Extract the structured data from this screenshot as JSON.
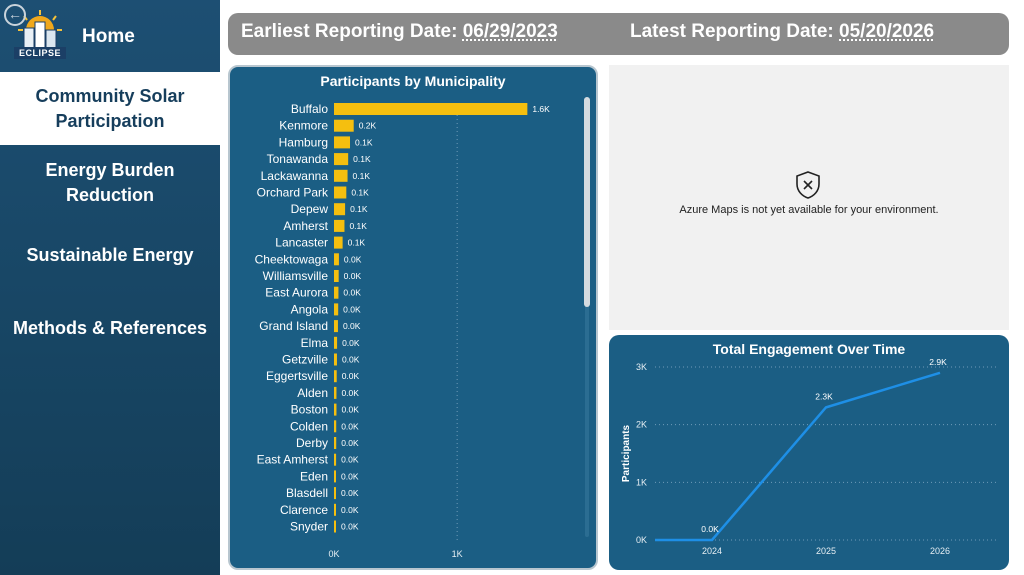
{
  "sidebar": {
    "home_label": "Home",
    "logo_text": "ECLIPSE",
    "items": [
      {
        "line1": "Community Solar",
        "line2": "Participation",
        "active": true
      },
      {
        "line1": "Energy Burden",
        "line2": "Reduction",
        "active": false
      },
      {
        "line1": "Sustainable Energy",
        "line2": "",
        "active": false
      },
      {
        "line1": "Methods & References",
        "line2": "",
        "active": false
      }
    ]
  },
  "header": {
    "earliest_label": "Earliest Reporting Date:",
    "earliest_value": "06/29/2023",
    "latest_label": "Latest Reporting Date:",
    "latest_value": "05/20/2026"
  },
  "map": {
    "message": "Azure Maps is not yet available for your environment."
  },
  "colors": {
    "bar": "#f5bf0f",
    "line": "#1e8fe6",
    "card": "#1b5e84"
  },
  "chart_data": [
    {
      "type": "bar",
      "orientation": "horizontal",
      "title": "Participants by Municipality",
      "categories": [
        "Buffalo",
        "Kenmore",
        "Hamburg",
        "Tonawanda",
        "Lackawanna",
        "Orchard Park",
        "Depew",
        "Amherst",
        "Lancaster",
        "Cheektowaga",
        "Williamsville",
        "East Aurora",
        "Angola",
        "Grand Island",
        "Elma",
        "Getzville",
        "Eggertsville",
        "Alden",
        "Boston",
        "Colden",
        "Derby",
        "East Amherst",
        "Eden",
        "Blasdell",
        "Clarence",
        "Snyder"
      ],
      "values": [
        1570,
        160,
        130,
        115,
        110,
        100,
        90,
        85,
        70,
        40,
        38,
        36,
        34,
        32,
        25,
        24,
        22,
        20,
        20,
        18,
        18,
        17,
        16,
        15,
        15,
        14
      ],
      "data_labels": [
        "1.6K",
        "0.2K",
        "0.1K",
        "0.1K",
        "0.1K",
        "0.1K",
        "0.1K",
        "0.1K",
        "0.1K",
        "0.0K",
        "0.0K",
        "0.0K",
        "0.0K",
        "0.0K",
        "0.0K",
        "0.0K",
        "0.0K",
        "0.0K",
        "0.0K",
        "0.0K",
        "0.0K",
        "0.0K",
        "0.0K",
        "0.0K",
        "0.0K",
        "0.0K"
      ],
      "xticks": [
        0,
        1000
      ],
      "xtick_labels": [
        "0K",
        "1K"
      ],
      "xlim": [
        0,
        1900
      ],
      "grid": true
    },
    {
      "type": "line",
      "title": "Total Engagement Over Time",
      "ylabel": "Participants",
      "x": [
        "2024",
        "2025",
        "2026"
      ],
      "points": [
        {
          "x": 2023.5,
          "y": 0,
          "label": ""
        },
        {
          "x": 2024.0,
          "y": 0,
          "label": "0.0K"
        },
        {
          "x": 2025.0,
          "y": 2300,
          "label": "2.3K"
        },
        {
          "x": 2026.0,
          "y": 2900,
          "label": "2.9K"
        }
      ],
      "yticks": [
        0,
        1000,
        2000,
        3000
      ],
      "ytick_labels": [
        "0K",
        "1K",
        "2K",
        "3K"
      ],
      "ylim": [
        0,
        3000
      ],
      "grid": true
    }
  ]
}
